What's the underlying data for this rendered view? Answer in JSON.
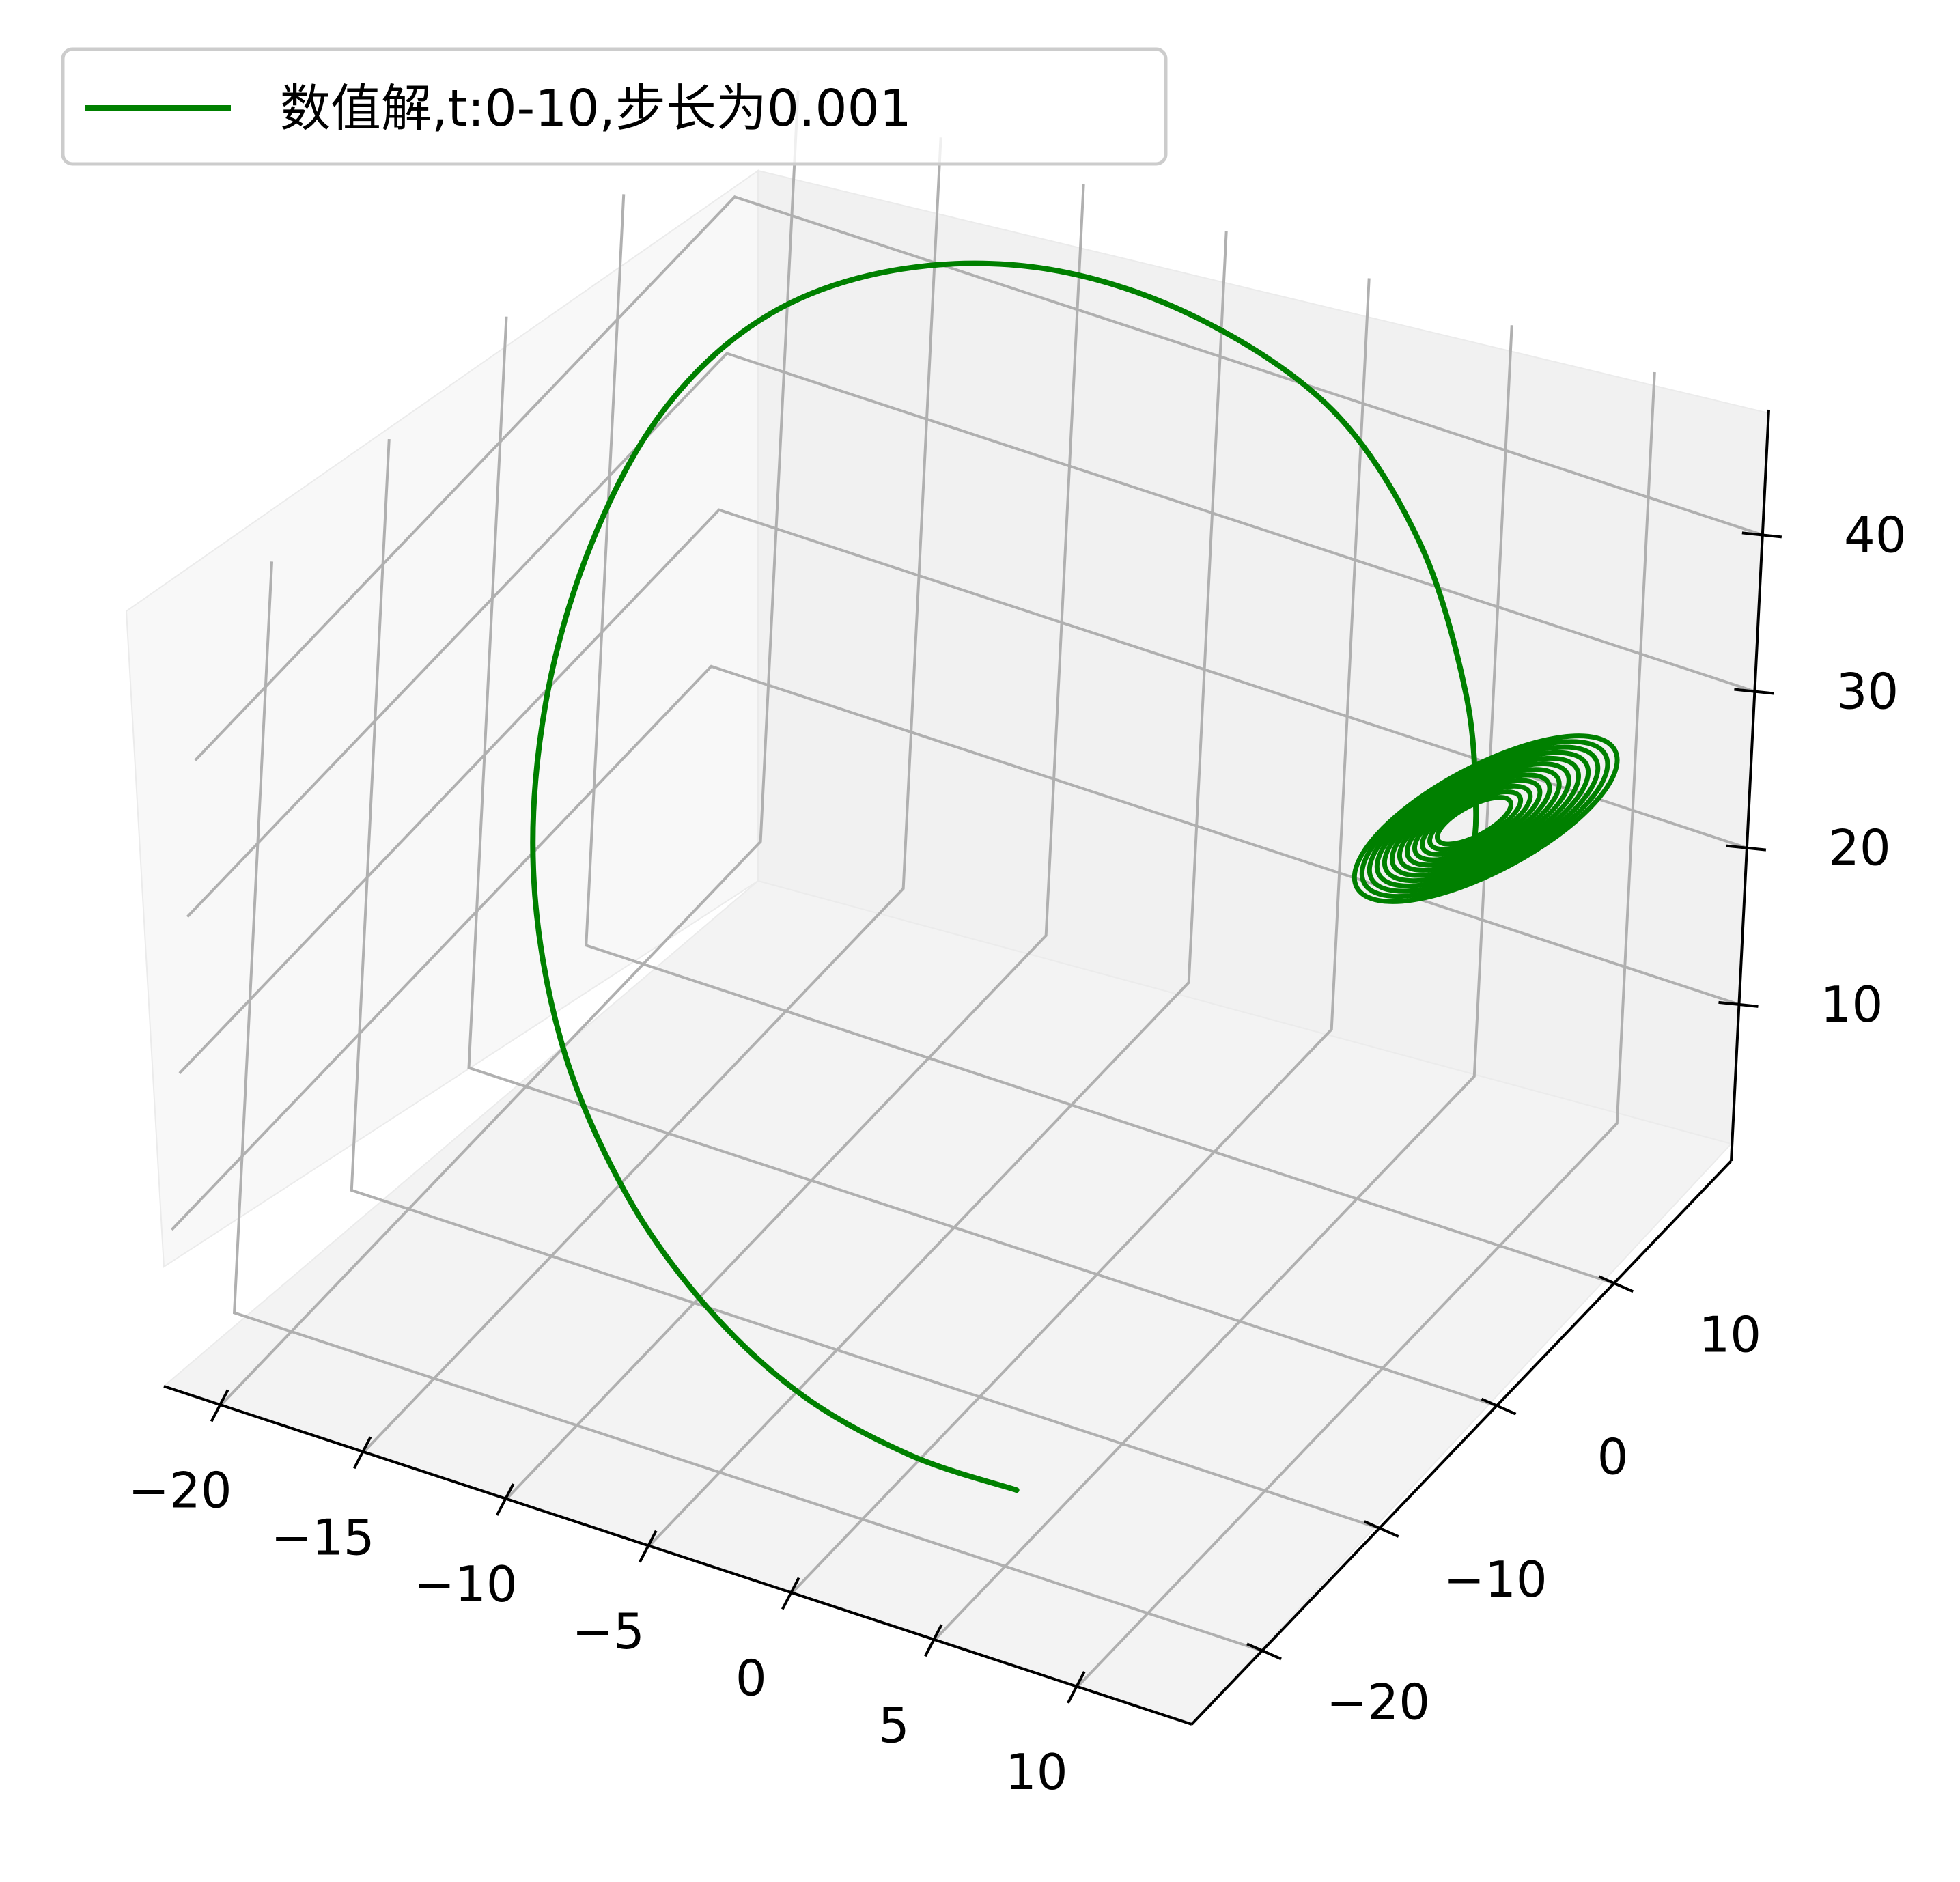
{
  "chart_data": {
    "type": "line",
    "projection": "3d",
    "title": "",
    "xlabel": "",
    "ylabel": "",
    "zlabel": "",
    "xlim": [
      -22,
      14
    ],
    "ylim": [
      -26,
      20
    ],
    "zlim": [
      0,
      48
    ],
    "x_ticks": [
      "−20",
      "−15",
      "−10",
      "−5",
      "0",
      "5",
      "10"
    ],
    "y_ticks": [
      "−20",
      "−10",
      "0",
      "10"
    ],
    "z_ticks": [
      "10",
      "20",
      "30",
      "40"
    ],
    "grid": true,
    "legend_position": "top-left",
    "series": [
      {
        "name": "数值解,t:0-10,步长为0.001",
        "color": "#008000",
        "x": [
          4.5,
          1.0,
          -3.0,
          -7.0,
          -11.0,
          -14.8,
          -17.8,
          -19.6,
          -20.2,
          -19.6,
          -17.5,
          -14.0,
          -9.5,
          -4.5,
          0.5,
          4.5,
          7.5,
          9.0,
          9.5
        ],
        "y": [
          -18.0,
          -18.5,
          -18.0,
          -16.5,
          -14.0,
          -10.5,
          -6.0,
          -1.0,
          4.0,
          8.5,
          12.0,
          14.5,
          16.0,
          16.5,
          16.0,
          14.0,
          11.0,
          8.5,
          7.0
        ],
        "z": [
          3.0,
          3.5,
          4.5,
          6.5,
          9.5,
          14.0,
          19.5,
          25.5,
          31.5,
          37.0,
          41.5,
          44.5,
          46.0,
          45.5,
          43.0,
          38.5,
          33.0,
          28.5,
          26.5
        ]
      }
    ],
    "attractor_loops": {
      "center": {
        "x": 8.5,
        "y": 8.5,
        "z": 27.0
      },
      "note_free": true
    }
  }
}
